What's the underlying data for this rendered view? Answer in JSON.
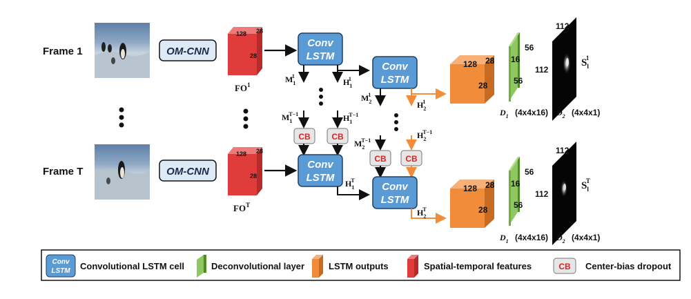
{
  "frames": {
    "frame1_label": "Frame 1",
    "frameT_label": "Frame T"
  },
  "omcnn_label": "OM-CNN",
  "red_cube": {
    "dims": [
      "128",
      "28",
      "28"
    ],
    "fo1": "FO",
    "fo1_sup": "1",
    "foT": "FO",
    "foT_sup": "T"
  },
  "conv_lstm_label": {
    "line1": "Conv",
    "line2": "LSTM"
  },
  "cb_label": "CB",
  "states": {
    "M": "M",
    "H": "H",
    "sub1": "1",
    "sub2": "2",
    "sup1": "1",
    "supT": "T",
    "supTm1": "T−1"
  },
  "orange_cube": {
    "dims": [
      "128",
      "28",
      "28"
    ]
  },
  "green_layer": {
    "dims": [
      "16",
      "56",
      "56"
    ],
    "d1": "D",
    "d1_sub": "1",
    "d1_dims": "(4x4x16)"
  },
  "output_map": {
    "top": "112",
    "side": "112",
    "d2": "D",
    "d2_sub": "2",
    "d2_dims": "(4x4x1)",
    "s": "S",
    "s_sub": "l",
    "s_sup1": "1",
    "s_supT": "T"
  },
  "legend": {
    "conv_lstm": "Convolutional LSTM cell",
    "deconv": "Deconvolutional layer",
    "lstm_out": "LSTM outputs",
    "spatial": "Spatial-temporal features",
    "cb": "Center-bias dropout"
  },
  "colors": {
    "lstm_blue": "#5b9bd5",
    "red": "#e03c3c",
    "orange": "#f08c3a",
    "green": "#6fb03a",
    "cb_text": "#d22222"
  }
}
